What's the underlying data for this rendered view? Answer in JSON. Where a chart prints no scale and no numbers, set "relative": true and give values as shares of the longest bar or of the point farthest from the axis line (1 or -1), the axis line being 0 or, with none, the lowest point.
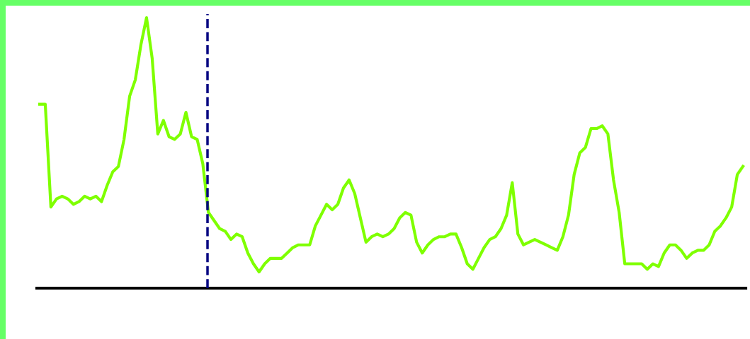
{
  "chart_data": {
    "type": "line",
    "relative": true,
    "categories": [
      null,
      null,
      null,
      null,
      null,
      null,
      null,
      null,
      null,
      null,
      null,
      null,
      null,
      null,
      null,
      null,
      null,
      null,
      null,
      null,
      null,
      null,
      null,
      null,
      null,
      null,
      null,
      null,
      null,
      null,
      null,
      null,
      null,
      null,
      null,
      null,
      null,
      null,
      null,
      null,
      null,
      null,
      null,
      null,
      null,
      null,
      null,
      null,
      null,
      null,
      null,
      null,
      null,
      null,
      null,
      null,
      null,
      null,
      null,
      null,
      null,
      null,
      null,
      null,
      null,
      null,
      null,
      null,
      null,
      null,
      null,
      null,
      null,
      null,
      null,
      null,
      null,
      null,
      null,
      null,
      null,
      null,
      null,
      null,
      null,
      null,
      null,
      null,
      null,
      null,
      null,
      null,
      null,
      null,
      null,
      null,
      null,
      null,
      null,
      null,
      null,
      null,
      null,
      null,
      null,
      null,
      null,
      null,
      null,
      null,
      null,
      null,
      null,
      null,
      null,
      null,
      null,
      null,
      null,
      null,
      null,
      null,
      null,
      null,
      null,
      null
    ],
    "series": [
      {
        "color": "#7fff00",
        "values": [
          0.68,
          0.68,
          0.3,
          0.33,
          0.34,
          0.33,
          0.31,
          0.32,
          0.34,
          0.33,
          0.34,
          0.32,
          0.38,
          0.43,
          0.45,
          0.55,
          0.71,
          0.77,
          0.9,
          1.0,
          0.85,
          0.57,
          0.62,
          0.56,
          0.55,
          0.57,
          0.65,
          0.56,
          0.55,
          0.46,
          0.28,
          0.25,
          0.22,
          0.21,
          0.18,
          0.2,
          0.19,
          0.13,
          0.09,
          0.06,
          0.09,
          0.11,
          0.11,
          0.11,
          0.13,
          0.15,
          0.16,
          0.16,
          0.16,
          0.23,
          0.27,
          0.31,
          0.29,
          0.31,
          0.37,
          0.4,
          0.35,
          0.26,
          0.17,
          0.19,
          0.2,
          0.19,
          0.2,
          0.22,
          0.26,
          0.28,
          0.27,
          0.17,
          0.13,
          0.16,
          0.18,
          0.19,
          0.19,
          0.2,
          0.2,
          0.15,
          0.09,
          0.07,
          0.11,
          0.15,
          0.18,
          0.19,
          0.22,
          0.27,
          0.39,
          0.2,
          0.16,
          0.17,
          0.18,
          0.17,
          0.16,
          0.15,
          0.14,
          0.19,
          0.27,
          0.42,
          0.5,
          0.52,
          0.59,
          0.59,
          0.6,
          0.57,
          0.4,
          0.28,
          0.09,
          0.09,
          0.09,
          0.09,
          0.07,
          0.09,
          0.08,
          0.13,
          0.16,
          0.16,
          0.14,
          0.11,
          0.13,
          0.14,
          0.14,
          0.16,
          0.21,
          0.23,
          0.26,
          0.3,
          0.42,
          0.45
        ]
      }
    ]
  }
}
